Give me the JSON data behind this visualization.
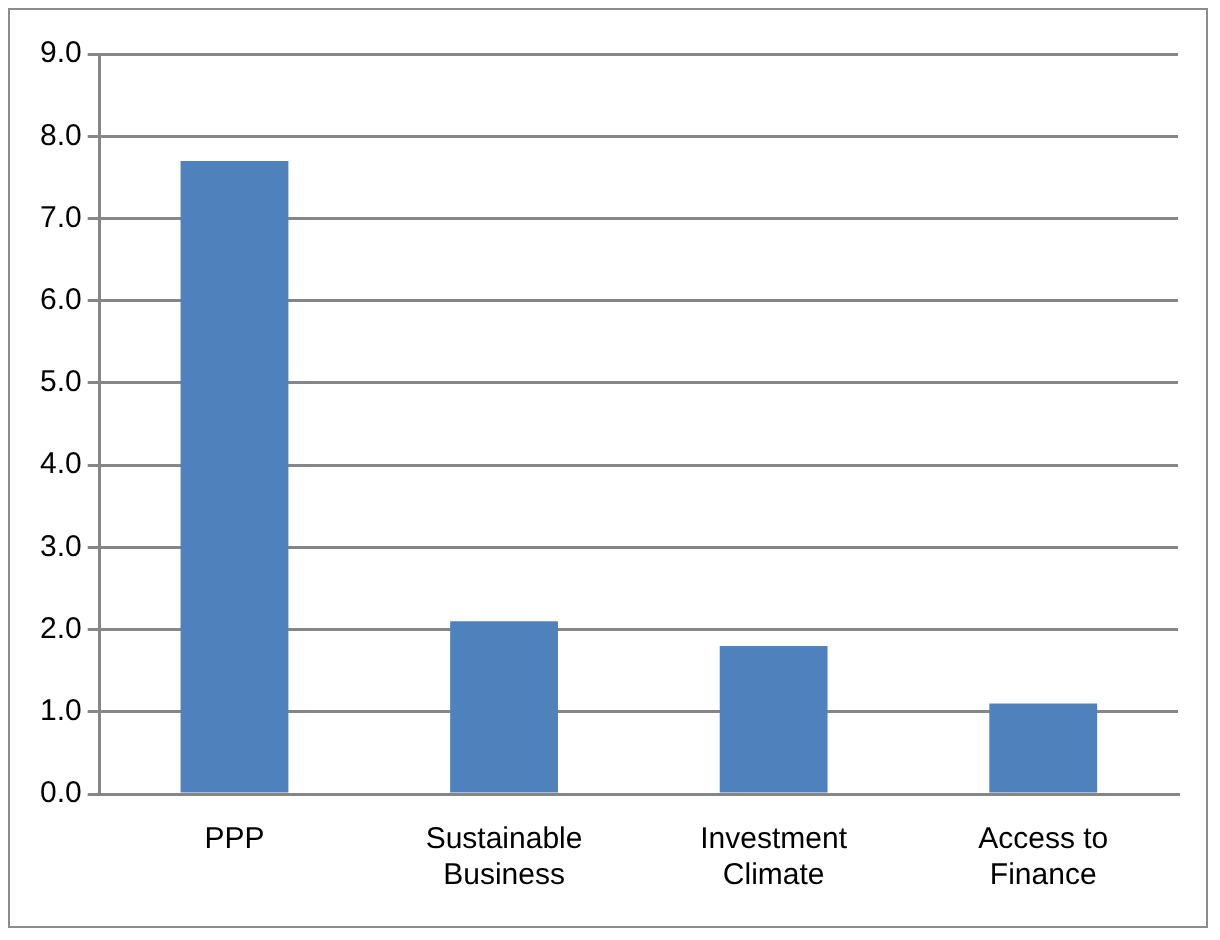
{
  "chart_data": {
    "type": "bar",
    "categories": [
      "PPP",
      "Sustainable Business",
      "Investment Climate",
      "Access to Finance"
    ],
    "values": [
      7.7,
      2.1,
      1.8,
      1.1
    ],
    "color": "#4f81bd",
    "ylim": [
      0,
      9
    ],
    "yticks": [
      {
        "value": 0,
        "label": "0.0"
      },
      {
        "value": 1,
        "label": "1.0"
      },
      {
        "value": 2,
        "label": "2.0"
      },
      {
        "value": 3,
        "label": "3.0"
      },
      {
        "value": 4,
        "label": "4.0"
      },
      {
        "value": 5,
        "label": "5.0"
      },
      {
        "value": 6,
        "label": "6.0"
      },
      {
        "value": 7,
        "label": "7.0"
      },
      {
        "value": 8,
        "label": "8.0"
      },
      {
        "value": 9,
        "label": "9.0"
      }
    ],
    "grid": "y",
    "legend": false
  }
}
